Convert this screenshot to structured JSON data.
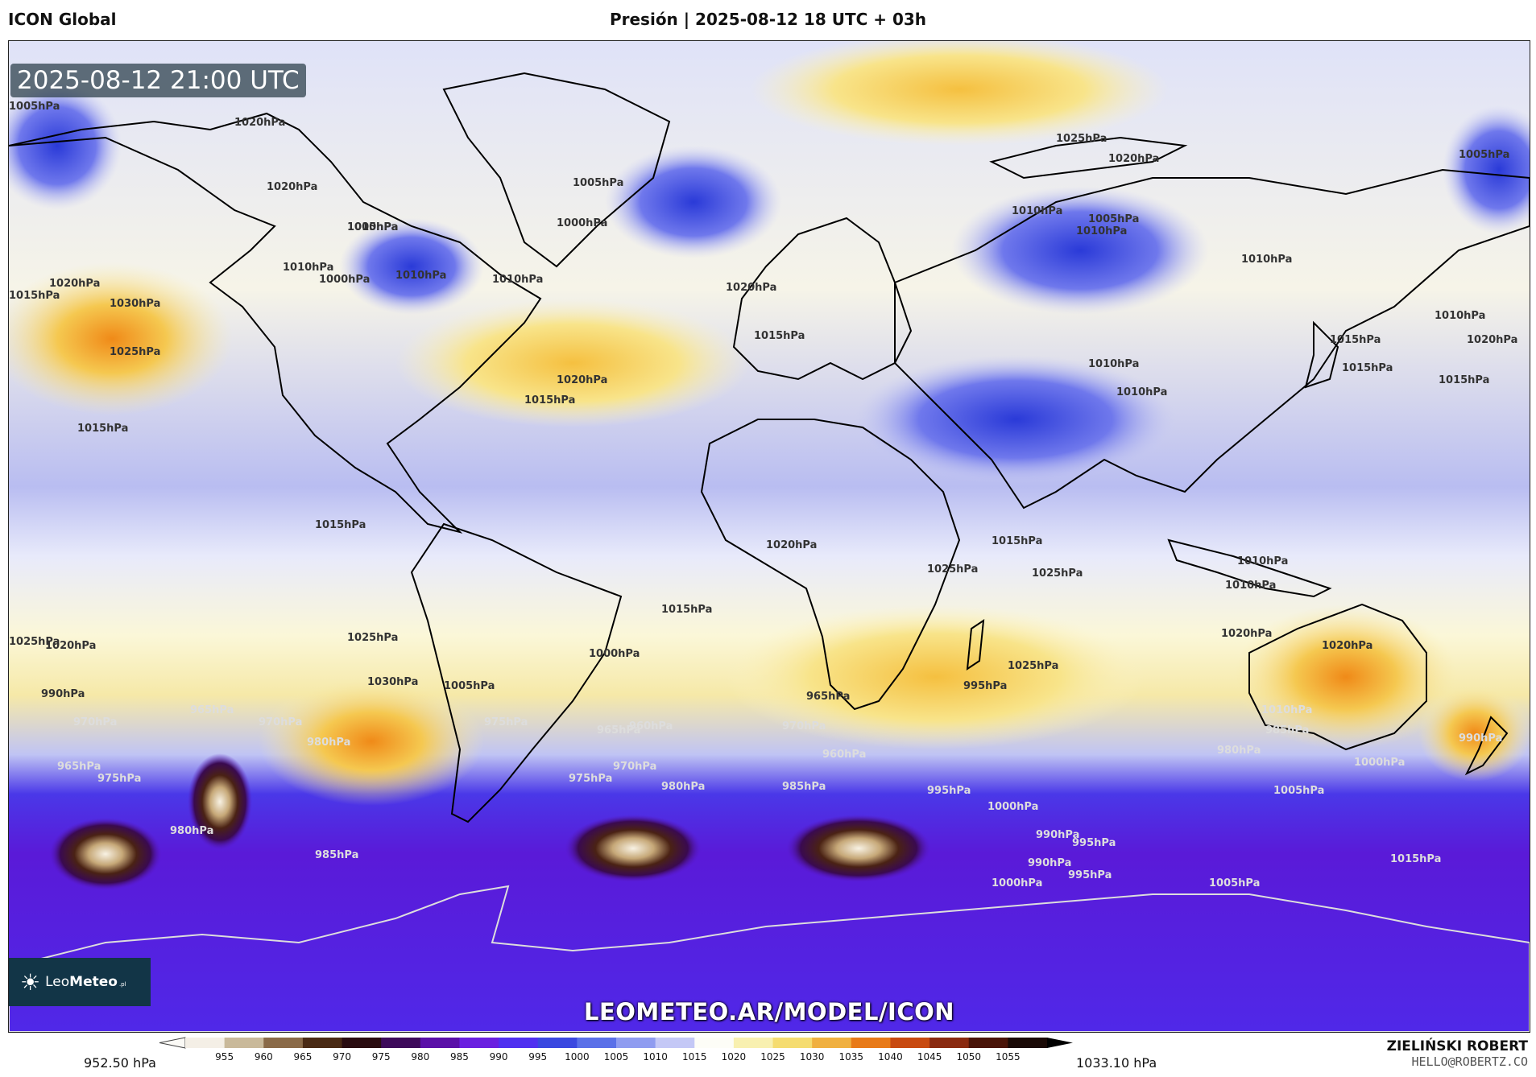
{
  "header": {
    "model": "ICON Global",
    "title": "Presión | 2025-08-12 18 UTC + 03h"
  },
  "map": {
    "valid_time": "2025-08-12 21:00 UTC",
    "watermark_url": "LEOMETEO.AR/MODEL/ICON",
    "logo": {
      "brand_light": "Leo",
      "brand_bold": "Meteo",
      "tld": ".pl"
    },
    "isobar_labels": [
      "1005hPa",
      "1020hPa",
      "1020hPa",
      "1010hPa",
      "1005hPa",
      "1000hPa",
      "1010hPa",
      "1000hPa",
      "1005hPa",
      "1010hPa",
      "1015hPa",
      "1020hPa",
      "1030hPa",
      "1025hPa",
      "1010hPa",
      "1025hPa",
      "1020hPa",
      "1010hPa",
      "1005hPa",
      "1010hPa",
      "1005hPa",
      "1010hPa",
      "1010hPa",
      "1015hPa",
      "1020hPa",
      "1020hPa",
      "1015hPa",
      "1015hPa",
      "1015hPa",
      "1010hPa",
      "1010hPa",
      "1015hPa",
      "1020hPa",
      "1015hPa",
      "1025hPa",
      "1025hPa",
      "1010hPa",
      "1020hPa",
      "1025hPa",
      "1015hPa",
      "1015hPa",
      "1020hPa",
      "1025hPa",
      "1030hPa",
      "1000hPa",
      "1005hPa",
      "990hPa",
      "970hPa",
      "965hPa",
      "975hPa",
      "965hPa",
      "970hPa",
      "980hPa",
      "975hPa",
      "965hPa",
      "960hPa",
      "970hPa",
      "975hPa",
      "980hPa",
      "985hPa",
      "965hPa",
      "995hPa",
      "970hPa",
      "960hPa",
      "985hPa",
      "990hPa",
      "980hPa",
      "1000hPa",
      "1005hPa",
      "995hPa",
      "1000hPa",
      "980hPa",
      "985hPa",
      "990hPa",
      "995hPa",
      "990hPa",
      "995hPa",
      "1010hPa",
      "1015hPa",
      "1020hPa",
      "1000hPa",
      "1005hPa",
      "1015hPa",
      "1025hPa",
      "1020hPa",
      "1010hPa"
    ]
  },
  "colorbar": {
    "min_label": "952.50 hPa",
    "max_label": "1033.10 hPa",
    "ticks": [
      "955",
      "960",
      "965",
      "970",
      "975",
      "980",
      "985",
      "990",
      "995",
      "1000",
      "1005",
      "1010",
      "1015",
      "1020",
      "1025",
      "1030",
      "1035",
      "1040",
      "1045",
      "1050",
      "1055"
    ],
    "colors": [
      "#f4efe6",
      "#c9b99a",
      "#8a6a48",
      "#4a2a14",
      "#2a0c10",
      "#3d0a5a",
      "#5a10a8",
      "#6a20e0",
      "#5030f0",
      "#3a48e0",
      "#5a70e8",
      "#8f9cf0",
      "#c4c8f6",
      "#fdfdf7",
      "#f8f0b0",
      "#f5dc70",
      "#f0b040",
      "#e87a18",
      "#c84a10",
      "#8a2a10",
      "#4a1408",
      "#1a0a06"
    ]
  },
  "credit": {
    "name": "ZIELIŃSKI ROBERT",
    "email": "HELLO@ROBERTZ.CO"
  }
}
